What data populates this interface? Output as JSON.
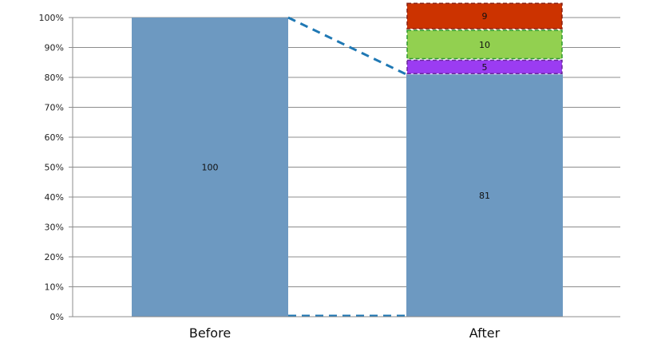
{
  "chart_data": {
    "type": "bar",
    "stacked": true,
    "percent": true,
    "categories": [
      "Before",
      "After"
    ],
    "series": [
      {
        "values": [
          100,
          81
        ],
        "color": "#6d99c1",
        "labels": [
          "100",
          "81"
        ]
      },
      {
        "values": [
          0,
          5
        ],
        "color": "#9b3cf2",
        "labels": [
          "",
          "5"
        ]
      },
      {
        "values": [
          0,
          10
        ],
        "color": "#92d050",
        "labels": [
          "",
          "10"
        ]
      },
      {
        "values": [
          0,
          9
        ],
        "color": "#cc3300",
        "labels": [
          "",
          "9"
        ]
      }
    ],
    "ylim": [
      0,
      100
    ],
    "yticks": [
      "0%",
      "10%",
      "20%",
      "30%",
      "40%",
      "50%",
      "60%",
      "70%",
      "80%",
      "90%",
      "100%"
    ],
    "grid": true,
    "connector_color": "#1f78b4"
  }
}
